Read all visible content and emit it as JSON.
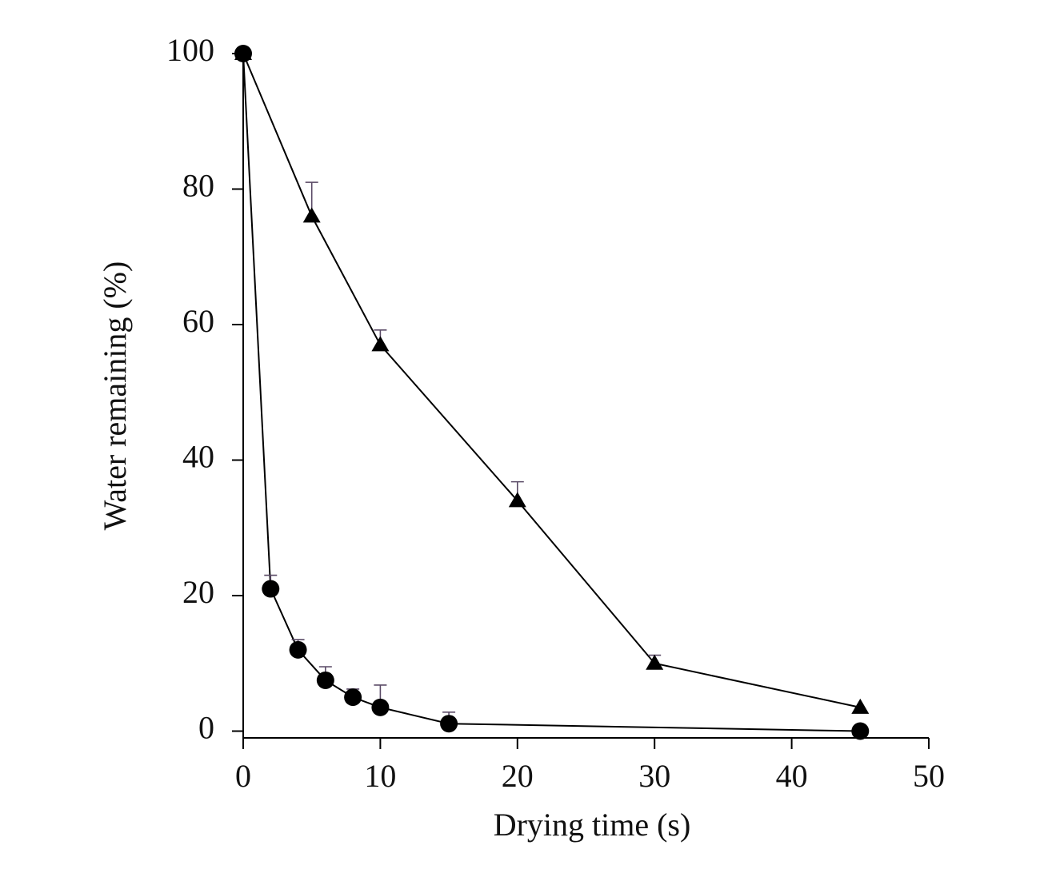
{
  "chart_data": {
    "type": "line",
    "x_label": "Drying time (s)",
    "y_label": "Water remaining (%)",
    "xlim": [
      0,
      50
    ],
    "xticks": [
      0,
      10,
      20,
      30,
      40,
      50
    ],
    "ylim": [
      -1,
      100
    ],
    "yticks": [
      0,
      20,
      40,
      60,
      80,
      100
    ],
    "series": [
      {
        "marker": "triangle",
        "color": "#000000",
        "x": [
          0,
          5,
          10,
          20,
          30,
          45
        ],
        "values": [
          100,
          76,
          57,
          34,
          10,
          3.5
        ],
        "errors": [
          null,
          5,
          2.2,
          2.8,
          1.2,
          null
        ]
      },
      {
        "marker": "circle",
        "color": "#000000",
        "x": [
          0,
          2,
          4,
          6,
          8,
          10,
          15,
          45
        ],
        "values": [
          100,
          21,
          12,
          7.5,
          5,
          3.5,
          1.1,
          0
        ],
        "errors": [
          null,
          2,
          1.5,
          2,
          1.2,
          3.3,
          1.7,
          null
        ]
      }
    ]
  }
}
